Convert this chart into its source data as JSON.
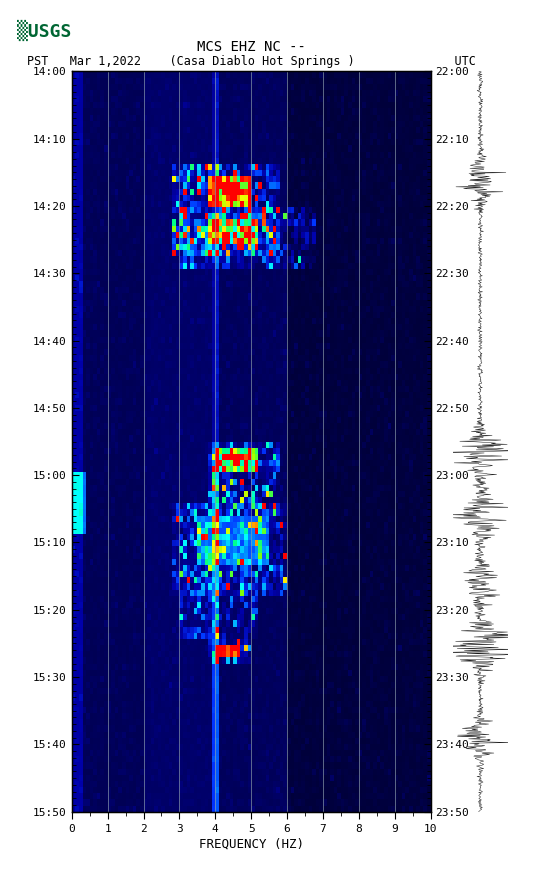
{
  "title_line1": "MCS EHZ NC --",
  "title_line2": "PST   Mar 1,2022    (Casa Diablo Hot Springs )              UTC",
  "xlabel": "FREQUENCY (HZ)",
  "left_yticks_labels": [
    "14:00",
    "14:10",
    "14:20",
    "14:30",
    "14:40",
    "14:50",
    "15:00",
    "15:10",
    "15:20",
    "15:30",
    "15:40",
    "15:50"
  ],
  "right_yticks_labels": [
    "22:00",
    "22:10",
    "22:20",
    "22:30",
    "22:40",
    "22:50",
    "23:00",
    "23:10",
    "23:20",
    "23:30",
    "23:40",
    "23:50"
  ],
  "xmin": 0,
  "xmax": 10,
  "freq_ticks": [
    0,
    1,
    2,
    3,
    4,
    5,
    6,
    7,
    8,
    9,
    10
  ],
  "vertical_lines_x": [
    1,
    2,
    3,
    4,
    5,
    6,
    7,
    8,
    9
  ],
  "num_time_bins": 120,
  "num_freq_bins": 100
}
